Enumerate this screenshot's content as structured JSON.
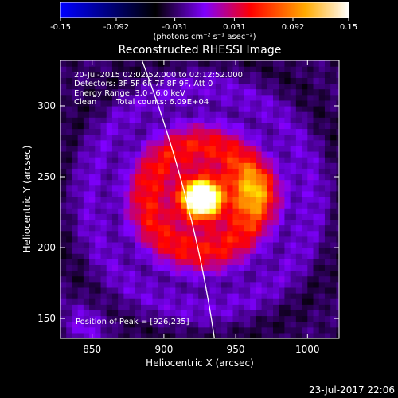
{
  "chart_data": {
    "type": "heatmap",
    "title": "Reconstructed RHESSI Image",
    "xlabel": "Heliocentric X (arcsec)",
    "ylabel": "Heliocentric Y (arcsec)",
    "xlim": [
      828,
      1022
    ],
    "ylim": [
      136,
      332
    ],
    "xticks": [
      "850",
      "900",
      "950",
      "1000"
    ],
    "xtick_values": [
      850,
      900,
      950,
      1000
    ],
    "yticks": [
      "150",
      "200",
      "250",
      "300"
    ],
    "ytick_values": [
      150,
      200,
      250,
      300
    ],
    "colorbar": {
      "range": [
        -0.15,
        0.15
      ],
      "ticks": [
        "-0.15",
        "-0.092",
        "-0.031",
        "0.031",
        "0.092",
        "0.15"
      ],
      "tick_values": [
        -0.15,
        -0.092,
        -0.031,
        0.031,
        0.092,
        0.15
      ],
      "unit_label": "(photons cm⁻² s⁻¹ asec⁻²)",
      "colormap": [
        "#0000ff",
        "#000000",
        "#7f00ff",
        "#ff0000",
        "#ffff00",
        "#ffffff"
      ]
    },
    "peak": {
      "x": 926,
      "y": 235
    },
    "limb_color": "#ffffff",
    "grid": false
  },
  "annotations": {
    "line1": "20-Jul-2015 02:02:52.000 to 02:12:52.000",
    "line2": "Detectors: 3F 5F 6F 7F 8F 9F, Att 0",
    "line3": "Energy Range: 3.0 - 6.0 keV",
    "line4_left": "Clean",
    "line4_right": "Total counts: 6.09E+04",
    "peak_text": "Position of Peak = [926,235]"
  },
  "footer": {
    "timestamp": "23-Jul-2017 22:06"
  }
}
